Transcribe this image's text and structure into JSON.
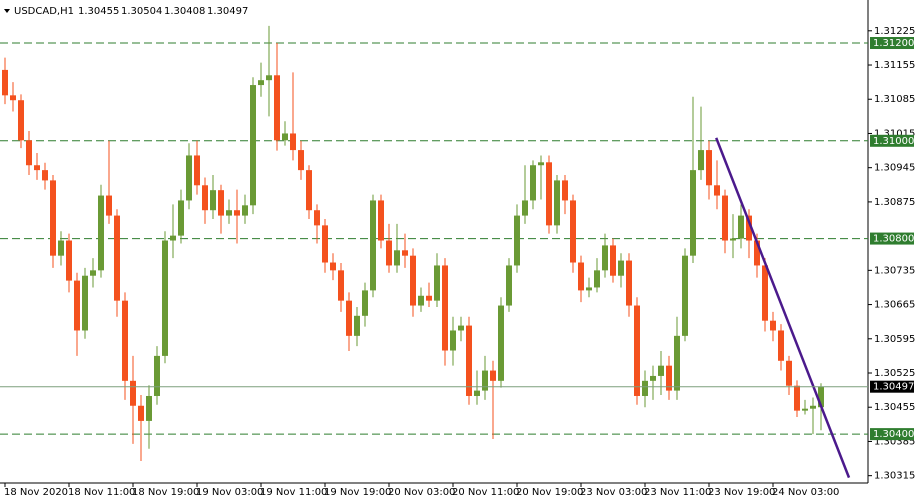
{
  "chart_data": {
    "type": "candlestick",
    "title": "USDCAD,H1",
    "categories": [
      "18 Nov 2020",
      null,
      null,
      null,
      null,
      null,
      null,
      null,
      "18 Nov 11:00",
      null,
      null,
      null,
      null,
      null,
      null,
      null,
      "18 Nov 19:00",
      null,
      null,
      null,
      null,
      null,
      null,
      null,
      "19 Nov 03:00",
      null,
      null,
      null,
      null,
      null,
      null,
      null,
      "19 Nov 11:00",
      null,
      null,
      null,
      null,
      null,
      null,
      null,
      "19 Nov 19:00",
      null,
      null,
      null,
      null,
      null,
      null,
      null,
      "20 Nov 03:00",
      null,
      null,
      null,
      null,
      null,
      null,
      null,
      "20 Nov 11:00",
      null,
      null,
      null,
      null,
      null,
      null,
      null,
      "20 Nov 19:00",
      null,
      null,
      null,
      null,
      null,
      null,
      null,
      "23 Nov 03:00",
      null,
      null,
      null,
      null,
      null,
      null,
      null,
      "23 Nov 11:00",
      null,
      null,
      null,
      null,
      null,
      null,
      null,
      "23 Nov 19:00",
      null,
      null,
      null,
      null,
      null,
      null,
      null,
      "24 Nov 03:00",
      null,
      null,
      null,
      null,
      null,
      null
    ],
    "open": [
      1.31145,
      1.31093,
      1.31083,
      1.31001,
      1.3095,
      1.3094,
      1.30919,
      1.30765,
      1.30796,
      1.30714,
      1.30612,
      1.30724,
      1.30735,
      1.30888,
      1.30847,
      1.30673,
      1.30509,
      1.30458,
      1.30427,
      1.30478,
      1.3056,
      1.30796,
      1.30806,
      1.30878,
      1.3097,
      1.30909,
      1.30858,
      1.30899,
      1.30847,
      1.30858,
      1.30847,
      1.30868,
      1.31114,
      1.31124,
      1.31134,
      1.31001,
      1.31015,
      1.30981,
      1.3094,
      1.30858,
      1.30827,
      1.30751,
      1.30735,
      1.30673,
      1.30601,
      1.30642,
      1.30694,
      1.30878,
      1.30796,
      1.30745,
      1.30776,
      1.30765,
      1.30663,
      1.30683,
      1.30673,
      1.30745,
      1.30571,
      1.30612,
      1.30622,
      1.30478,
      1.30489,
      1.3053,
      1.30509,
      1.30663,
      1.30745,
      1.30847,
      1.30878,
      1.3095,
      1.30956,
      1.30827,
      1.30919,
      1.30878,
      1.30751,
      1.30694,
      1.307,
      1.30735,
      1.30786,
      1.30724,
      1.30755,
      1.30663,
      1.30478,
      1.30509,
      1.30519,
      1.3054,
      1.30489,
      1.30601,
      1.30765,
      1.3094,
      1.30981,
      1.30909,
      1.30888,
      1.30796,
      1.308,
      1.30847,
      1.30796,
      1.30745,
      1.30632,
      1.30612,
      1.3055,
      1.30499,
      1.30448,
      1.30452,
      1.30455
    ],
    "high": [
      1.3117,
      1.3112,
      1.31095,
      1.3102,
      1.30975,
      1.30955,
      1.3093,
      1.30815,
      1.3081,
      1.3073,
      1.3074,
      1.3076,
      1.3091,
      1.31,
      1.3086,
      1.3069,
      1.3056,
      1.3048,
      1.305,
      1.3058,
      1.30815,
      1.3087,
      1.309,
      1.30995,
      1.31,
      1.30925,
      1.3093,
      1.3091,
      1.3088,
      1.309,
      1.3089,
      1.3113,
      1.3116,
      1.31235,
      1.312,
      1.3104,
      1.3114,
      1.31,
      1.3095,
      1.3087,
      1.3084,
      1.3077,
      1.3075,
      1.3069,
      1.3066,
      1.3071,
      1.3089,
      1.3089,
      1.3083,
      1.3083,
      1.3081,
      1.3078,
      1.307,
      1.3071,
      1.3077,
      1.3076,
      1.3064,
      1.3064,
      1.3064,
      1.3053,
      1.3056,
      1.3055,
      1.3068,
      1.3076,
      1.3087,
      1.3095,
      1.3096,
      1.3097,
      1.3097,
      1.3093,
      1.3093,
      1.3089,
      1.30765,
      1.3072,
      1.3076,
      1.3081,
      1.308,
      1.3077,
      1.3077,
      1.3068,
      1.3053,
      1.3054,
      1.3057,
      1.3056,
      1.3064,
      1.3078,
      1.3109,
      1.3107,
      1.31,
      1.3096,
      1.309,
      1.3085,
      1.3087,
      1.3086,
      1.3081,
      1.3076,
      1.3065,
      1.30625,
      1.3056,
      1.3051,
      1.3047,
      1.30475,
      1.30504
    ],
    "low": [
      1.31075,
      1.3106,
      1.30985,
      1.3093,
      1.3092,
      1.309,
      1.3074,
      1.30745,
      1.3069,
      1.3056,
      1.30595,
      1.307,
      1.3072,
      1.3083,
      1.3064,
      1.3047,
      1.3038,
      1.30345,
      1.3037,
      1.3046,
      1.30545,
      1.3076,
      1.3079,
      1.3086,
      1.3089,
      1.3083,
      1.3084,
      1.3081,
      1.3083,
      1.3079,
      1.3083,
      1.3085,
      1.3109,
      1.3105,
      1.3098,
      1.3099,
      1.3096,
      1.3092,
      1.3084,
      1.3079,
      1.3073,
      1.30715,
      1.3065,
      1.3057,
      1.3058,
      1.3062,
      1.3068,
      1.3078,
      1.3073,
      1.3073,
      1.3074,
      1.3064,
      1.3065,
      1.3066,
      1.3066,
      1.3054,
      1.3054,
      1.3059,
      1.3046,
      1.3046,
      1.3047,
      1.3039,
      1.30495,
      1.3065,
      1.3073,
      1.3083,
      1.3086,
      1.3088,
      1.3081,
      1.3081,
      1.3085,
      1.3073,
      1.3067,
      1.3068,
      1.3069,
      1.3072,
      1.3071,
      1.307,
      1.3064,
      1.3046,
      1.30455,
      1.3047,
      1.3048,
      1.3047,
      1.3047,
      1.3059,
      1.3075,
      1.3092,
      1.3088,
      1.3086,
      1.3077,
      1.3076,
      1.3078,
      1.3076,
      1.3072,
      1.3061,
      1.3059,
      1.3053,
      1.3048,
      1.30435,
      1.3044,
      1.304,
      1.30408
    ],
    "close": [
      1.31093,
      1.31083,
      1.31001,
      1.3095,
      1.3094,
      1.30919,
      1.30765,
      1.30796,
      1.30714,
      1.30612,
      1.30724,
      1.30735,
      1.30888,
      1.30847,
      1.30673,
      1.30509,
      1.30458,
      1.30427,
      1.30478,
      1.3056,
      1.30796,
      1.30806,
      1.30878,
      1.3097,
      1.30909,
      1.30858,
      1.30899,
      1.30847,
      1.30858,
      1.30847,
      1.30868,
      1.31114,
      1.31124,
      1.31134,
      1.31001,
      1.31015,
      1.30981,
      1.3094,
      1.30858,
      1.30827,
      1.30751,
      1.30735,
      1.30673,
      1.30601,
      1.30642,
      1.30694,
      1.30878,
      1.30796,
      1.30745,
      1.30776,
      1.30765,
      1.30663,
      1.30683,
      1.30673,
      1.30745,
      1.30571,
      1.30612,
      1.30622,
      1.30478,
      1.30489,
      1.3053,
      1.30509,
      1.30663,
      1.30745,
      1.30847,
      1.30878,
      1.3095,
      1.30956,
      1.30827,
      1.30919,
      1.30878,
      1.30751,
      1.30694,
      1.307,
      1.30735,
      1.30786,
      1.30724,
      1.30755,
      1.30663,
      1.30478,
      1.30509,
      1.30519,
      1.3054,
      1.30489,
      1.30601,
      1.30765,
      1.3094,
      1.30981,
      1.30909,
      1.30888,
      1.30796,
      1.308,
      1.30847,
      1.30796,
      1.30745,
      1.30632,
      1.30612,
      1.3055,
      1.30499,
      1.30448,
      1.30452,
      1.30458,
      1.30497
    ],
    "up_color": "#6a9a35",
    "down_color": "#f4511e",
    "ylim": [
      1.303,
      1.31288
    ],
    "yticks": [
      1.31225,
      1.31155,
      1.31085,
      1.31015,
      1.30945,
      1.30875,
      1.30735,
      1.30665,
      1.30595,
      1.30525,
      1.30455,
      1.30385,
      1.30315
    ],
    "levels": [
      {
        "value": 1.312,
        "label": "1.31200"
      },
      {
        "value": 1.31,
        "label": "1.31000"
      },
      {
        "value": 1.308,
        "label": "1.30800"
      },
      {
        "value": 1.304,
        "label": "1.30400"
      }
    ],
    "level_color": "#2f7d2f",
    "trendline": {
      "x": [
        88.9,
        105.5
      ],
      "y": [
        1.31006,
        1.30311
      ],
      "color": "#4b1a8c"
    }
  }
}
